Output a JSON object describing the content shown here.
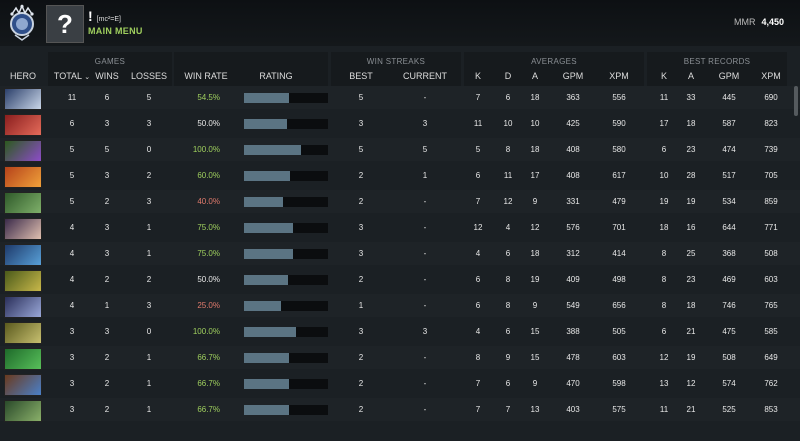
{
  "player": {
    "name": "!",
    "tag": "[mc²=E]",
    "main_menu_label": "MAIN MENU",
    "avatar_glyph": "?",
    "mmr_label": "MMR",
    "mmr_value": "4,450"
  },
  "headers": {
    "groups": {
      "games": "GAMES",
      "win_streaks": "WIN STREAKS",
      "averages": "AVERAGES",
      "best_records": "BEST RECORDS"
    },
    "columns": {
      "hero": "HERO",
      "total": "TOTAL",
      "wins": "WINS",
      "losses": "LOSSES",
      "win_rate": "WIN RATE",
      "rating": "RATING",
      "best": "BEST",
      "current": "CURRENT",
      "avg_k": "K",
      "avg_d": "D",
      "avg_a": "A",
      "avg_gpm": "GPM",
      "avg_xpm": "XPM",
      "best_k": "K",
      "best_a": "A",
      "best_gpm": "GPM",
      "best_xpm": "XPM"
    },
    "sort_icon": "chevron-down-icon"
  },
  "colors": {
    "win_high": "#9fcf5e",
    "win_low": "#e07a6c",
    "rating_bar": "#5b7483"
  },
  "rows": [
    {
      "hero_colors": [
        "#2b3f6a",
        "#c9d6e8"
      ],
      "total": "11",
      "wins": "6",
      "losses": "5",
      "win_rate": "54.5%",
      "rating": 0.54,
      "best": "5",
      "current": "-",
      "k": "7",
      "d": "6",
      "a": "18",
      "gpm": "363",
      "xpm": "556",
      "bk": "11",
      "ba": "33",
      "bgpm": "445",
      "bxpm": "690"
    },
    {
      "hero_colors": [
        "#8a1e1e",
        "#e46b5a"
      ],
      "total": "6",
      "wins": "3",
      "losses": "3",
      "win_rate": "50.0%",
      "rating": 0.51,
      "best": "3",
      "current": "3",
      "k": "11",
      "d": "10",
      "a": "10",
      "gpm": "425",
      "xpm": "590",
      "bk": "17",
      "ba": "18",
      "bgpm": "587",
      "bxpm": "823"
    },
    {
      "hero_colors": [
        "#2c5a1e",
        "#8d4cc8"
      ],
      "total": "5",
      "wins": "5",
      "losses": "0",
      "win_rate": "100.0%",
      "rating": 0.68,
      "best": "5",
      "current": "5",
      "k": "5",
      "d": "8",
      "a": "18",
      "gpm": "408",
      "xpm": "580",
      "bk": "6",
      "ba": "23",
      "bgpm": "474",
      "bxpm": "739"
    },
    {
      "hero_colors": [
        "#b5421a",
        "#f0a13a"
      ],
      "total": "5",
      "wins": "3",
      "losses": "2",
      "win_rate": "60.0%",
      "rating": 0.55,
      "best": "2",
      "current": "1",
      "k": "6",
      "d": "11",
      "a": "17",
      "gpm": "408",
      "xpm": "617",
      "bk": "10",
      "ba": "28",
      "bgpm": "517",
      "bxpm": "705"
    },
    {
      "hero_colors": [
        "#2f5a2a",
        "#7fb06a"
      ],
      "total": "5",
      "wins": "2",
      "losses": "3",
      "win_rate": "40.0%",
      "rating": 0.47,
      "best": "2",
      "current": "-",
      "k": "7",
      "d": "12",
      "a": "9",
      "gpm": "331",
      "xpm": "479",
      "bk": "19",
      "ba": "19",
      "bgpm": "534",
      "bxpm": "859"
    },
    {
      "hero_colors": [
        "#3a2a4a",
        "#e0c0b0"
      ],
      "total": "4",
      "wins": "3",
      "losses": "1",
      "win_rate": "75.0%",
      "rating": 0.58,
      "best": "3",
      "current": "-",
      "k": "12",
      "d": "4",
      "a": "12",
      "gpm": "576",
      "xpm": "701",
      "bk": "18",
      "ba": "16",
      "bgpm": "644",
      "bxpm": "771"
    },
    {
      "hero_colors": [
        "#1e3a6a",
        "#58a0d8"
      ],
      "total": "4",
      "wins": "3",
      "losses": "1",
      "win_rate": "75.0%",
      "rating": 0.58,
      "best": "3",
      "current": "-",
      "k": "4",
      "d": "6",
      "a": "18",
      "gpm": "312",
      "xpm": "414",
      "bk": "8",
      "ba": "25",
      "bgpm": "368",
      "bxpm": "508"
    },
    {
      "hero_colors": [
        "#4a5a1a",
        "#c8b84a"
      ],
      "total": "4",
      "wins": "2",
      "losses": "2",
      "win_rate": "50.0%",
      "rating": 0.52,
      "best": "2",
      "current": "-",
      "k": "6",
      "d": "8",
      "a": "19",
      "gpm": "409",
      "xpm": "498",
      "bk": "8",
      "ba": "23",
      "bgpm": "469",
      "bxpm": "603"
    },
    {
      "hero_colors": [
        "#2a2f5a",
        "#9aa8d8"
      ],
      "total": "4",
      "wins": "1",
      "losses": "3",
      "win_rate": "25.0%",
      "rating": 0.44,
      "best": "1",
      "current": "-",
      "k": "6",
      "d": "8",
      "a": "9",
      "gpm": "549",
      "xpm": "656",
      "bk": "8",
      "ba": "18",
      "bgpm": "746",
      "bxpm": "765"
    },
    {
      "hero_colors": [
        "#5a5a1e",
        "#c8c070"
      ],
      "total": "3",
      "wins": "3",
      "losses": "0",
      "win_rate": "100.0%",
      "rating": 0.62,
      "best": "3",
      "current": "3",
      "k": "4",
      "d": "6",
      "a": "15",
      "gpm": "388",
      "xpm": "505",
      "bk": "6",
      "ba": "21",
      "bgpm": "475",
      "bxpm": "585"
    },
    {
      "hero_colors": [
        "#1e6a2a",
        "#58c05a"
      ],
      "total": "3",
      "wins": "2",
      "losses": "1",
      "win_rate": "66.7%",
      "rating": 0.53,
      "best": "2",
      "current": "-",
      "k": "8",
      "d": "9",
      "a": "15",
      "gpm": "478",
      "xpm": "603",
      "bk": "12",
      "ba": "19",
      "bgpm": "508",
      "bxpm": "649"
    },
    {
      "hero_colors": [
        "#6a3a1e",
        "#4a80c8"
      ],
      "total": "3",
      "wins": "2",
      "losses": "1",
      "win_rate": "66.7%",
      "rating": 0.53,
      "best": "2",
      "current": "-",
      "k": "7",
      "d": "6",
      "a": "9",
      "gpm": "470",
      "xpm": "598",
      "bk": "13",
      "ba": "12",
      "bgpm": "574",
      "bxpm": "762"
    },
    {
      "hero_colors": [
        "#2a4a2a",
        "#8ab06a"
      ],
      "total": "3",
      "wins": "2",
      "losses": "1",
      "win_rate": "66.7%",
      "rating": 0.53,
      "best": "2",
      "current": "-",
      "k": "7",
      "d": "7",
      "a": "13",
      "gpm": "403",
      "xpm": "575",
      "bk": "11",
      "ba": "21",
      "bgpm": "525",
      "bxpm": "853"
    }
  ]
}
